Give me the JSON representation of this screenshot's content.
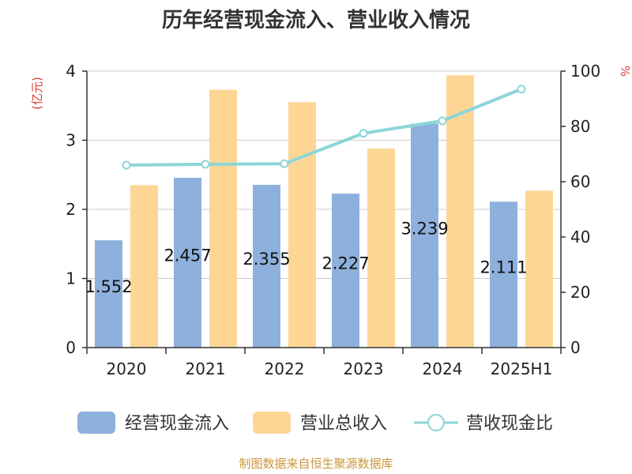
{
  "chart_data": {
    "type": "bar",
    "title": "历年经营现金流入、营业收入情况",
    "left_axis_unit": "(亿元)",
    "right_axis_unit": "%",
    "categories": [
      "2020",
      "2021",
      "2022",
      "2023",
      "2024",
      "2025H1"
    ],
    "series": [
      {
        "name": "经营现金流入",
        "type": "bar",
        "axis": "left",
        "color": "#8eb0dc",
        "values": [
          1.552,
          2.457,
          2.355,
          2.227,
          3.239,
          2.111
        ],
        "labels": [
          "1.552",
          "2.457",
          "2.355",
          "2.227",
          "3.239",
          "2.111"
        ]
      },
      {
        "name": "营业总收入",
        "type": "bar",
        "axis": "left",
        "color": "#fdd696",
        "values": [
          2.35,
          3.73,
          3.55,
          2.88,
          3.94,
          2.27
        ]
      },
      {
        "name": "营收现金比",
        "type": "line",
        "axis": "right",
        "color": "#8dd5d8",
        "values": [
          66.0,
          66.3,
          66.5,
          77.5,
          82.0,
          93.5
        ]
      }
    ],
    "left_ylim": [
      0,
      4
    ],
    "left_ticks": [
      "0",
      "1",
      "2",
      "3",
      "4"
    ],
    "right_ylim": [
      0,
      100
    ],
    "right_ticks": [
      "0",
      "20",
      "40",
      "60",
      "80",
      "100"
    ],
    "grid": true,
    "legend_position": "bottom"
  },
  "colors": {
    "accent_red": "#e23b2e",
    "source_text": "#c9963a",
    "axis": "#333333",
    "grid": "#cccccc"
  },
  "source": "制图数据来自恒生聚源数据库"
}
